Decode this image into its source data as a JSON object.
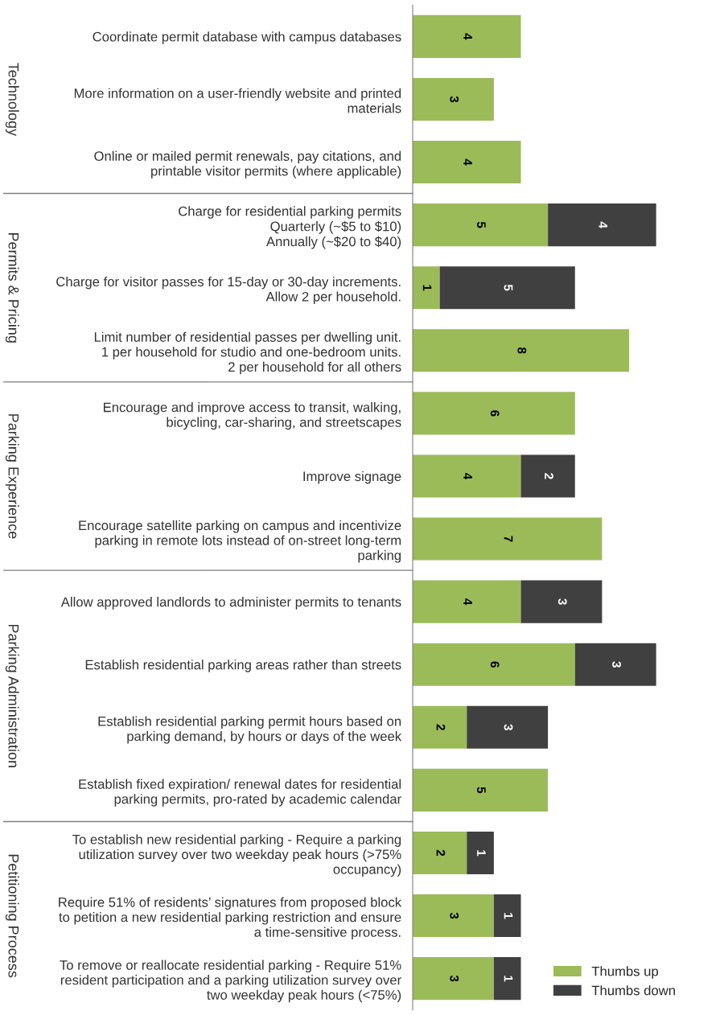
{
  "chart_data": {
    "type": "bar",
    "orientation": "horizontal",
    "stacked": true,
    "data_labels": true,
    "tick_labels": "y",
    "grid": false,
    "legend": "bottom right",
    "categories": [
      "Coordinate permit database with campus databases",
      "More information on a user-friendly website and printed\nmaterials",
      "Online or mailed permit renewals, pay citations, and\nprintable visitor permits (where applicable)",
      "Charge for residential parking permits\nQuarterly (~$5 to $10)\nAnnually (~$20 to $40)",
      "Charge for visitor passes for 15-day or 30-day increments.\nAllow 2 per household.",
      "Limit number of residential passes per dwelling unit.\n1 per household for studio and one-bedroom units.\n2 per household for all others",
      "Encourage and improve access to transit, walking,\nbicycling, car-sharing, and streetscapes",
      "Improve signage",
      "Encourage satellite parking on campus and incentivize\nparking in remote lots instead of on-street long-term\nparking",
      "Allow approved landlords to administer permits to tenants",
      "Establish residential parking areas rather than streets",
      "Establish residential parking permit hours based on\nparking demand, by hours or days of the week",
      "Establish fixed expiration/ renewal dates for residential\nparking permits, pro-rated by academic calendar",
      "To establish new residential parking - Require a parking\nutilization survey over two weekday peak hours (>75%\noccupancy)",
      "Require 51% of residents’ signatures from proposed block\nto petition a new residential parking restriction and ensure\na time-sensitive process.",
      "To remove or reallocate residential parking - Require 51%\nresident participation and a parking utilization survey over\ntwo weekday peak hours (<75%)"
    ],
    "series": [
      {
        "name": "Thumbs up",
        "color": "#9bbb59",
        "values": [
          4,
          3,
          4,
          5,
          1,
          8,
          6,
          4,
          7,
          4,
          6,
          2,
          5,
          2,
          3,
          3
        ]
      },
      {
        "name": "Thumbs down",
        "color": "#404040",
        "values": [
          null,
          null,
          null,
          4,
          5,
          null,
          null,
          2,
          null,
          3,
          3,
          3,
          null,
          1,
          1,
          1
        ]
      }
    ],
    "annotations": [
      "Technology",
      "Permits & Pricing",
      "Parking Experience",
      "Parking Administration",
      "Petitioning Process"
    ]
  }
}
